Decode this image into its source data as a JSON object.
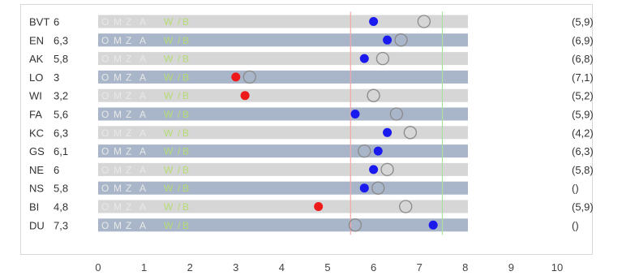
{
  "chart_data": {
    "type": "scatter",
    "title": "",
    "xlabel": "",
    "ylabel": "",
    "xlim": [
      0,
      10
    ],
    "x_ticks": [
      "0",
      "1",
      "2",
      "3",
      "4",
      "5",
      "6",
      "7",
      "8",
      "9",
      "10"
    ],
    "grid": false,
    "legend": "none",
    "band_labels": [
      "O",
      "M",
      "Z",
      "A",
      "W",
      "/",
      "B"
    ],
    "reference_lines": [
      {
        "value": 5.5,
        "color": "#f4a6a6"
      },
      {
        "value": 7.5,
        "color": "#a8e0a0"
      }
    ],
    "rows": [
      {
        "name": "BVT",
        "score_label": "6",
        "marker": 6.0,
        "marker_color": "blue",
        "ring": 7.1,
        "right_label": "(5,9)",
        "highlight": false,
        "shade": "light"
      },
      {
        "name": "EN",
        "score_label": "6,3",
        "marker": 6.3,
        "marker_color": "blue",
        "ring": 6.6,
        "right_label": "(6,9)",
        "highlight": false,
        "shade": "dark"
      },
      {
        "name": "AK",
        "score_label": "5,8",
        "marker": 5.8,
        "marker_color": "blue",
        "ring": 6.2,
        "right_label": "(6,8)",
        "highlight": false,
        "shade": "light"
      },
      {
        "name": "LO",
        "score_label": "3",
        "marker": 3.0,
        "marker_color": "red",
        "ring": 3.3,
        "right_label": "(7,1)",
        "highlight": true,
        "shade": "dark"
      },
      {
        "name": "WI",
        "score_label": "3,2",
        "marker": 3.2,
        "marker_color": "red",
        "ring": 6.0,
        "right_label": "(5,2)",
        "highlight": true,
        "shade": "light"
      },
      {
        "name": "FA",
        "score_label": "5,6",
        "marker": 5.6,
        "marker_color": "blue",
        "ring": 6.5,
        "right_label": "(5,9)",
        "highlight": false,
        "shade": "dark"
      },
      {
        "name": "KC",
        "score_label": "6,3",
        "marker": 6.3,
        "marker_color": "blue",
        "ring": 6.8,
        "right_label": "(4,2)",
        "highlight": false,
        "shade": "light"
      },
      {
        "name": "GS",
        "score_label": "6,1",
        "marker": 6.1,
        "marker_color": "blue",
        "ring": 5.8,
        "right_label": "(6,3)",
        "highlight": false,
        "shade": "dark"
      },
      {
        "name": "NE",
        "score_label": "6",
        "marker": 6.0,
        "marker_color": "blue",
        "ring": 6.3,
        "right_label": "(5,8)",
        "highlight": false,
        "shade": "light"
      },
      {
        "name": "NS",
        "score_label": "5,8",
        "marker": 5.8,
        "marker_color": "blue",
        "ring": 6.1,
        "right_label": "()",
        "highlight": false,
        "shade": "dark"
      },
      {
        "name": "BI",
        "score_label": "4,8",
        "marker": 4.8,
        "marker_color": "red",
        "ring": 6.7,
        "right_label": "(5,9)",
        "highlight": true,
        "shade": "light"
      },
      {
        "name": "DU",
        "score_label": "7,3",
        "marker": 7.3,
        "marker_color": "blue",
        "ring": 5.6,
        "right_label": "()",
        "highlight": false,
        "shade": "dark"
      }
    ]
  },
  "colors": {
    "row_light": "#d6d6d6",
    "row_dark": "#a9b6c9",
    "band_text_gray": "#e8e8e8",
    "band_text_green": "#b5dc73",
    "marker_blue": "#1a1aee",
    "marker_red": "#ee1a1a",
    "ring_stroke": "#8a8a8a",
    "highlight_text": "#e23b3b",
    "normal_text": "#333333"
  }
}
